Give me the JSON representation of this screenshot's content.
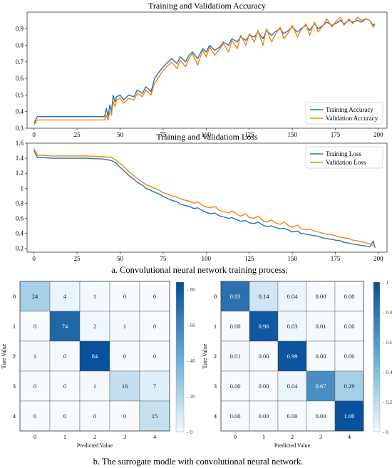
{
  "captions": {
    "a": "a. Convolutional neural network training process.",
    "b": "b. The surrogate modle with convolutional neural network."
  },
  "chart_data": [
    {
      "type": "line",
      "title": "Training and Validatiom Accuracy",
      "xlim": [
        -4,
        205
      ],
      "ylim": [
        0.3,
        1.0
      ],
      "xticks": [
        0,
        25,
        50,
        75,
        100,
        125,
        150,
        175,
        200
      ],
      "yticks": [
        0.3,
        0.4,
        0.5,
        0.6,
        0.7,
        0.8,
        0.9
      ],
      "legend": "bottom-right",
      "series": [
        {
          "name": "Training Accuracy",
          "color": "#1f77b4",
          "x": [
            0,
            2,
            5,
            10,
            20,
            30,
            40,
            41,
            42,
            43,
            44,
            45,
            46,
            47,
            48,
            50,
            52,
            55,
            58,
            60,
            63,
            65,
            68,
            70,
            72,
            75,
            78,
            80,
            83,
            85,
            88,
            90,
            92,
            95,
            98,
            100,
            102,
            105,
            108,
            110,
            113,
            115,
            118,
            120,
            123,
            125,
            128,
            130,
            133,
            135,
            138,
            140,
            143,
            145,
            148,
            150,
            153,
            155,
            158,
            160,
            163,
            165,
            168,
            170,
            173,
            175,
            178,
            180,
            183,
            185,
            188,
            190,
            193,
            195,
            197,
            198
          ],
          "y": [
            0.33,
            0.37,
            0.37,
            0.37,
            0.37,
            0.37,
            0.37,
            0.37,
            0.42,
            0.37,
            0.44,
            0.4,
            0.5,
            0.46,
            0.49,
            0.5,
            0.47,
            0.5,
            0.49,
            0.53,
            0.51,
            0.55,
            0.52,
            0.6,
            0.63,
            0.67,
            0.7,
            0.72,
            0.69,
            0.73,
            0.7,
            0.74,
            0.76,
            0.72,
            0.78,
            0.76,
            0.8,
            0.77,
            0.79,
            0.82,
            0.8,
            0.84,
            0.82,
            0.85,
            0.83,
            0.86,
            0.85,
            0.88,
            0.84,
            0.89,
            0.86,
            0.88,
            0.9,
            0.87,
            0.89,
            0.91,
            0.88,
            0.9,
            0.92,
            0.89,
            0.93,
            0.9,
            0.92,
            0.94,
            0.92,
            0.93,
            0.95,
            0.93,
            0.95,
            0.94,
            0.95,
            0.94,
            0.96,
            0.95,
            0.92,
            0.93
          ]
        },
        {
          "name": "Validation Accuracy",
          "color": "#ff7f0e",
          "x": [
            0,
            2,
            5,
            10,
            20,
            30,
            40,
            41,
            42,
            43,
            44,
            45,
            46,
            47,
            48,
            50,
            52,
            55,
            58,
            60,
            63,
            65,
            68,
            70,
            72,
            75,
            78,
            80,
            83,
            85,
            88,
            90,
            92,
            95,
            98,
            100,
            102,
            105,
            108,
            110,
            113,
            115,
            118,
            120,
            123,
            125,
            128,
            130,
            133,
            135,
            138,
            140,
            143,
            145,
            148,
            150,
            153,
            155,
            158,
            160,
            163,
            165,
            168,
            170,
            173,
            175,
            178,
            180,
            183,
            185,
            188,
            190,
            193,
            195,
            197,
            198
          ],
          "y": [
            0.32,
            0.35,
            0.35,
            0.35,
            0.35,
            0.35,
            0.35,
            0.35,
            0.38,
            0.35,
            0.4,
            0.38,
            0.46,
            0.43,
            0.47,
            0.48,
            0.45,
            0.48,
            0.47,
            0.51,
            0.49,
            0.53,
            0.5,
            0.57,
            0.6,
            0.65,
            0.68,
            0.7,
            0.66,
            0.71,
            0.67,
            0.72,
            0.75,
            0.68,
            0.77,
            0.73,
            0.79,
            0.74,
            0.78,
            0.81,
            0.76,
            0.83,
            0.78,
            0.86,
            0.8,
            0.87,
            0.82,
            0.89,
            0.8,
            0.9,
            0.82,
            0.86,
            0.91,
            0.84,
            0.88,
            0.92,
            0.85,
            0.89,
            0.93,
            0.86,
            0.94,
            0.88,
            0.92,
            0.96,
            0.91,
            0.94,
            0.97,
            0.92,
            0.96,
            0.93,
            0.97,
            0.95,
            0.96,
            0.95,
            0.91,
            0.92
          ]
        }
      ]
    },
    {
      "type": "line",
      "title": "Training and Validatiom Loss",
      "xlim": [
        -4,
        205
      ],
      "ylim": [
        0.15,
        1.6
      ],
      "xticks": [
        0,
        25,
        50,
        75,
        100,
        125,
        150,
        175,
        200
      ],
      "yticks": [
        0.2,
        0.4,
        0.6,
        0.8,
        1.0,
        1.2,
        1.4,
        1.6
      ],
      "legend": "top-right",
      "series": [
        {
          "name": "Training Loss",
          "color": "#1f77b4",
          "x": [
            0,
            2,
            5,
            10,
            20,
            30,
            40,
            45,
            48,
            50,
            53,
            55,
            58,
            60,
            63,
            65,
            68,
            70,
            73,
            75,
            78,
            80,
            83,
            85,
            88,
            90,
            93,
            95,
            98,
            100,
            103,
            105,
            108,
            110,
            113,
            115,
            118,
            120,
            123,
            125,
            128,
            130,
            133,
            135,
            138,
            140,
            143,
            145,
            148,
            150,
            153,
            155,
            158,
            160,
            163,
            165,
            168,
            170,
            173,
            175,
            178,
            180,
            183,
            185,
            188,
            190,
            193,
            195,
            197,
            198
          ],
          "y": [
            1.5,
            1.41,
            1.41,
            1.4,
            1.4,
            1.4,
            1.39,
            1.37,
            1.33,
            1.28,
            1.22,
            1.17,
            1.12,
            1.08,
            1.04,
            1.0,
            0.97,
            0.95,
            0.92,
            0.89,
            0.86,
            0.84,
            0.82,
            0.79,
            0.77,
            0.76,
            0.73,
            0.74,
            0.7,
            0.68,
            0.66,
            0.67,
            0.63,
            0.62,
            0.6,
            0.61,
            0.58,
            0.56,
            0.57,
            0.54,
            0.53,
            0.55,
            0.51,
            0.49,
            0.5,
            0.48,
            0.46,
            0.47,
            0.44,
            0.42,
            0.43,
            0.4,
            0.39,
            0.38,
            0.37,
            0.36,
            0.34,
            0.33,
            0.32,
            0.31,
            0.3,
            0.28,
            0.27,
            0.26,
            0.25,
            0.24,
            0.23,
            0.22,
            0.3,
            0.21
          ]
        },
        {
          "name": "Validation Loss",
          "color": "#ff7f0e",
          "x": [
            0,
            2,
            5,
            10,
            20,
            30,
            40,
            45,
            48,
            50,
            53,
            55,
            58,
            60,
            63,
            65,
            68,
            70,
            73,
            75,
            78,
            80,
            83,
            85,
            88,
            90,
            93,
            95,
            98,
            100,
            103,
            105,
            108,
            110,
            113,
            115,
            118,
            120,
            123,
            125,
            128,
            130,
            133,
            135,
            138,
            140,
            143,
            145,
            148,
            150,
            153,
            155,
            158,
            160,
            163,
            165,
            168,
            170,
            173,
            175,
            178,
            180,
            183,
            185,
            188,
            190,
            193,
            195,
            197,
            198
          ],
          "y": [
            1.53,
            1.44,
            1.44,
            1.43,
            1.43,
            1.43,
            1.42,
            1.41,
            1.37,
            1.33,
            1.27,
            1.22,
            1.17,
            1.13,
            1.08,
            1.05,
            1.02,
            1.0,
            0.97,
            0.94,
            0.92,
            0.9,
            0.88,
            0.86,
            0.84,
            0.83,
            0.8,
            0.82,
            0.77,
            0.75,
            0.74,
            0.76,
            0.7,
            0.69,
            0.67,
            0.7,
            0.65,
            0.63,
            0.66,
            0.61,
            0.6,
            0.63,
            0.57,
            0.55,
            0.58,
            0.54,
            0.52,
            0.55,
            0.5,
            0.48,
            0.51,
            0.46,
            0.45,
            0.46,
            0.43,
            0.42,
            0.4,
            0.39,
            0.38,
            0.37,
            0.35,
            0.34,
            0.33,
            0.31,
            0.3,
            0.29,
            0.27,
            0.26,
            0.24,
            0.24
          ]
        }
      ]
    },
    {
      "type": "heatmap",
      "xlabel": "Predicted Value",
      "ylabel": "Ture Value",
      "x_categories": [
        "0",
        "1",
        "2",
        "3",
        "4"
      ],
      "y_categories": [
        "0",
        "1",
        "2",
        "3",
        "4"
      ],
      "vmax": 84,
      "colorbar_ticks": [
        0,
        20,
        40,
        60,
        80
      ],
      "values": [
        [
          24,
          4,
          1,
          0,
          0
        ],
        [
          0,
          74,
          2,
          1,
          0
        ],
        [
          1,
          0,
          84,
          0,
          0
        ],
        [
          0,
          0,
          1,
          16,
          7
        ],
        [
          0,
          0,
          0,
          0,
          15
        ]
      ]
    },
    {
      "type": "heatmap",
      "xlabel": "Predicted Value",
      "ylabel": "Ture Value",
      "x_categories": [
        "0",
        "1",
        "2",
        "3",
        "4"
      ],
      "y_categories": [
        "0",
        "1",
        "2",
        "3",
        "4"
      ],
      "vmax": 1,
      "colorbar_ticks": [
        0,
        0.2,
        0.4,
        0.6,
        0.8,
        1
      ],
      "values": [
        [
          "0.83",
          "0.14",
          "0.04",
          "0.00",
          "0.00"
        ],
        [
          "0.00",
          "0.96",
          "0.03",
          "0.01",
          "0.00"
        ],
        [
          "0.01",
          "0.00",
          "0.99",
          "0.00",
          "0.00"
        ],
        [
          "0.00",
          "0.00",
          "0.04",
          "0.67",
          "0.29"
        ],
        [
          "0.00",
          "0.00",
          "0.00",
          "0.00",
          "1.00"
        ]
      ]
    }
  ]
}
